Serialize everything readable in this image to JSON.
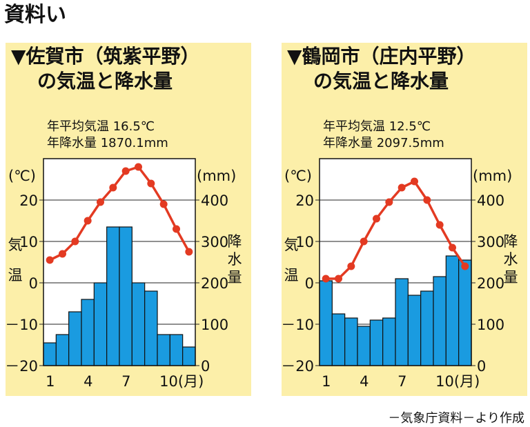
{
  "heading": "資料い",
  "source": "－気象庁資料－より作成",
  "chart_data": [
    {
      "type": "bar",
      "title_line1": "▼佐賀市（筑紫平野）",
      "title_line2": "の気温と降水量",
      "annual_temp": "年平均気温 16.5℃",
      "annual_precip": "年降水量 1870.1mm",
      "categories": [
        "1",
        "2",
        "3",
        "4",
        "5",
        "6",
        "7",
        "8",
        "9",
        "10",
        "11",
        "12"
      ],
      "x_tick_labels": [
        "1",
        "4",
        "7",
        "10(月)"
      ],
      "x_tick_months": [
        1,
        4,
        7,
        10
      ],
      "left_axis": {
        "label": "気温",
        "unit_label": "(℃)",
        "ylim": [
          -20,
          30
        ],
        "ticks": [
          20,
          10,
          0,
          -10,
          -20
        ],
        "tick_labels": [
          "20",
          "10",
          "0",
          "－10",
          "－20"
        ]
      },
      "right_axis": {
        "label": "降水量",
        "unit_label": "(mm)",
        "ylim": [
          0,
          500
        ],
        "ticks": [
          400,
          300,
          200,
          100,
          0
        ],
        "tick_labels": [
          "400",
          "300",
          "200",
          "100",
          "0"
        ]
      },
      "series": [
        {
          "type": "bar",
          "axis": "right",
          "values": [
            55,
            75,
            130,
            160,
            200,
            335,
            335,
            200,
            180,
            75,
            75,
            45
          ]
        },
        {
          "type": "line",
          "axis": "left",
          "values": [
            5.5,
            7,
            10,
            15,
            19.5,
            23,
            27,
            28,
            24,
            19,
            13,
            7.5
          ]
        }
      ],
      "colors": {
        "bar": "#1a9be0",
        "line": "#e33a22",
        "panel": "#fcefa9"
      }
    },
    {
      "type": "bar",
      "title_line1": "▼鶴岡市（庄内平野）",
      "title_line2": "の気温と降水量",
      "annual_temp": "年平均気温 12.5℃",
      "annual_precip": "年降水量 2097.5mm",
      "categories": [
        "1",
        "2",
        "3",
        "4",
        "5",
        "6",
        "7",
        "8",
        "9",
        "10",
        "11",
        "12"
      ],
      "x_tick_labels": [
        "1",
        "4",
        "7",
        "10(月)"
      ],
      "x_tick_months": [
        1,
        4,
        7,
        10
      ],
      "left_axis": {
        "label": "気温",
        "unit_label": "(℃)",
        "ylim": [
          -20,
          30
        ],
        "ticks": [
          20,
          10,
          0,
          -10,
          -20
        ],
        "tick_labels": [
          "20",
          "10",
          "0",
          "－10",
          "－20"
        ]
      },
      "right_axis": {
        "label": "降水量",
        "unit_label": "(mm)",
        "ylim": [
          0,
          500
        ],
        "ticks": [
          400,
          300,
          200,
          100,
          0
        ],
        "tick_labels": [
          "400",
          "300",
          "200",
          "100",
          "0"
        ]
      },
      "series": [
        {
          "type": "bar",
          "axis": "right",
          "values": [
            205,
            125,
            115,
            95,
            110,
            115,
            210,
            170,
            180,
            215,
            265,
            255
          ]
        },
        {
          "type": "line",
          "axis": "left",
          "values": [
            1,
            1,
            4,
            10,
            15.5,
            19.5,
            23,
            24.5,
            20,
            14,
            8.5,
            4
          ]
        }
      ],
      "colors": {
        "bar": "#1a9be0",
        "line": "#e33a22",
        "panel": "#fcefa9"
      }
    }
  ]
}
